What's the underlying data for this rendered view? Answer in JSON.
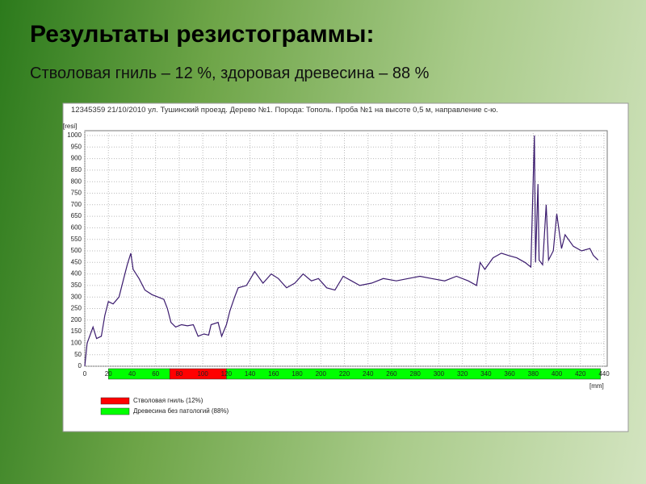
{
  "chart_data": {
    "type": "line",
    "title": "Результаты резистограммы:",
    "subtitle": "Стволовая гниль – 12 %, здоровая древесина – 88 %",
    "info": "12345359   21/10/2010   ул. Тушинский проезд. Дерево №1. Порода: Тополь. Проба №1 на высоте 0,5 м, направление с-ю.",
    "ylabel": "[resi]",
    "xlabel": "[mm]",
    "xlim": [
      0,
      440
    ],
    "ylim": [
      0,
      1000
    ],
    "xticks": [
      0,
      20,
      40,
      60,
      80,
      100,
      120,
      140,
      160,
      180,
      200,
      220,
      240,
      260,
      280,
      300,
      320,
      340,
      360,
      380,
      400,
      420,
      440
    ],
    "yticks": [
      0,
      50,
      100,
      150,
      200,
      250,
      300,
      350,
      400,
      450,
      500,
      550,
      600,
      650,
      700,
      750,
      800,
      850,
      900,
      950,
      1000
    ],
    "grid": true,
    "series": [
      {
        "color": "#3b1b6e",
        "x": [
          0,
          2,
          7,
          10,
          14,
          17,
          20,
          24,
          29,
          33,
          36,
          39,
          41,
          46,
          51,
          57,
          62,
          67,
          70,
          73,
          77,
          82,
          87,
          92,
          96,
          101,
          105,
          107,
          113,
          116,
          120,
          123,
          127,
          130,
          137,
          144,
          151,
          158,
          164,
          171,
          178,
          185,
          192,
          198,
          205,
          212,
          219,
          226,
          233,
          243,
          253,
          264,
          274,
          284,
          294,
          305,
          315,
          325,
          332,
          335,
          339,
          346,
          353,
          359,
          366,
          373,
          378,
          381,
          382,
          384,
          385,
          388,
          391,
          393,
          397,
          400,
          404,
          407,
          414,
          421,
          428,
          431,
          435
        ],
        "values": [
          0,
          100,
          170,
          120,
          130,
          220,
          280,
          270,
          300,
          380,
          440,
          490,
          420,
          380,
          330,
          310,
          300,
          290,
          250,
          190,
          170,
          180,
          175,
          180,
          130,
          140,
          135,
          180,
          190,
          130,
          180,
          240,
          300,
          340,
          350,
          410,
          360,
          400,
          380,
          340,
          360,
          400,
          370,
          380,
          340,
          330,
          390,
          370,
          350,
          360,
          380,
          370,
          380,
          390,
          380,
          370,
          390,
          370,
          350,
          450,
          420,
          470,
          490,
          480,
          470,
          450,
          430,
          1000,
          450,
          790,
          460,
          440,
          700,
          460,
          500,
          660,
          510,
          570,
          520,
          500,
          510,
          480,
          460
        ]
      }
    ],
    "zones": [
      {
        "start": 20,
        "end": 72,
        "legend": 1
      },
      {
        "start": 72,
        "end": 120,
        "legend": 0
      },
      {
        "start": 120,
        "end": 437,
        "legend": 1
      }
    ],
    "legend": [
      {
        "name": "Стволовая гниль (12%)",
        "color": "#ff0000"
      },
      {
        "name": "Древесина без патологий (88%)",
        "color": "#00ff00"
      }
    ]
  }
}
